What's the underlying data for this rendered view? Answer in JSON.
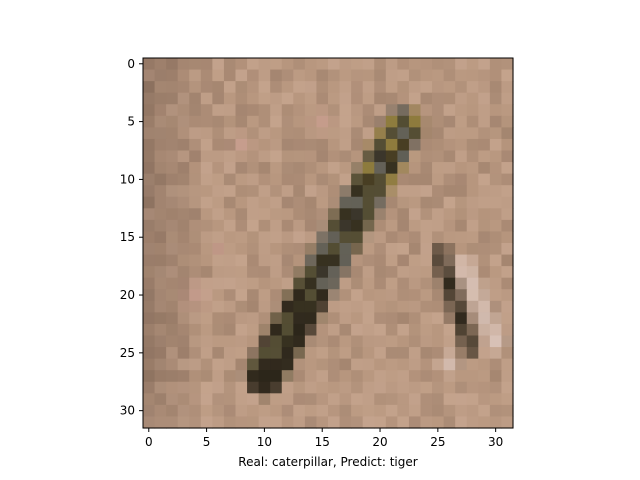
{
  "chart_data": {
    "type": "heatmap",
    "title": "",
    "xlabel": "Real: caterpillar, Predict: tiger",
    "ylabel": "",
    "x_ticks": [
      0,
      5,
      10,
      15,
      20,
      25,
      30
    ],
    "y_ticks": [
      0,
      5,
      10,
      15,
      20,
      25,
      30
    ],
    "xlim": [
      -0.5,
      31.5
    ],
    "ylim": [
      31.5,
      -0.5
    ],
    "image_size": [
      32,
      32
    ],
    "colors": {
      "sand": "#b8977f",
      "sand_light": "#c9a892",
      "sand_dark": "#9c7e6a",
      "shadow": "#7f6656",
      "body_dark": "#2a2418",
      "body_green": "#4f4a30",
      "body_grey": "#5f5e55",
      "highlight": "#ddc8bf",
      "pink": "#c99b8f",
      "yellow": "#8c7a3a"
    }
  }
}
